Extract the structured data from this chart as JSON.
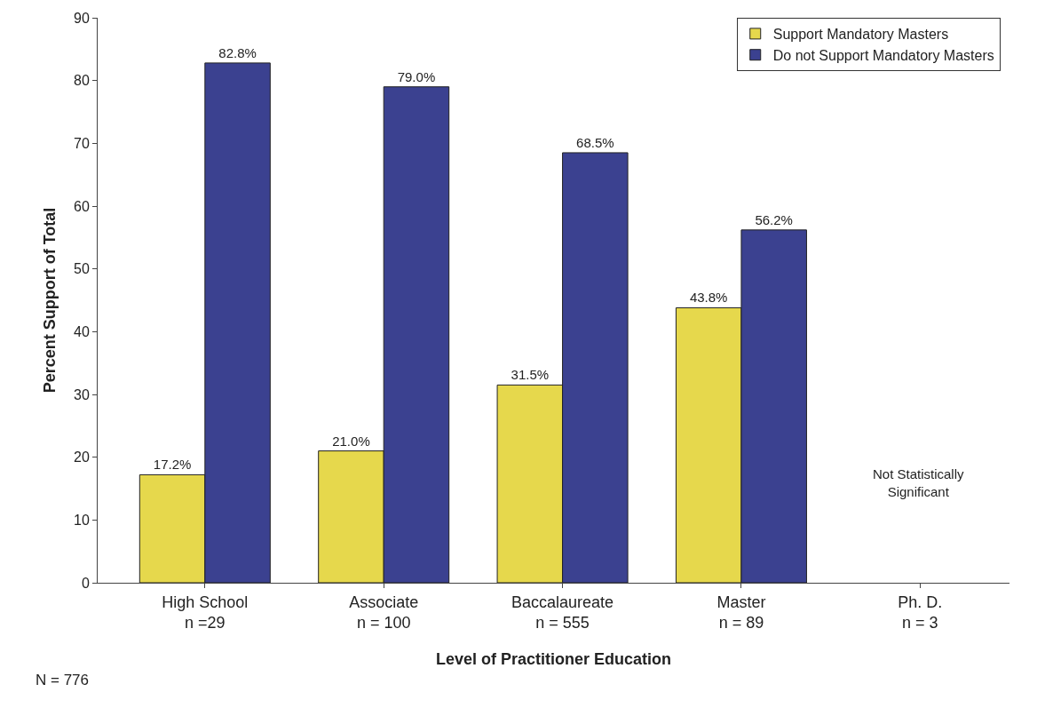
{
  "chart_data": {
    "type": "bar",
    "xlabel": "Level of Practitioner Education",
    "ylabel": "Percent Support of Total",
    "categories": [
      "High School\nn =29",
      "Associate\nn = 100",
      "Baccalaureate\nn = 555",
      "Master\nn = 89",
      "Ph. D.\nn = 3"
    ],
    "series": [
      {
        "name": "Support Mandatory Masters",
        "color": "#e6d84c",
        "values": [
          17.2,
          21.0,
          31.5,
          43.8,
          null
        ],
        "value_labels": [
          "17.2%",
          "21.0%",
          "31.5%",
          "43.8%",
          null
        ]
      },
      {
        "name": "Do not Support Mandatory Masters",
        "color": "#3b4190",
        "values": [
          82.8,
          79.0,
          68.5,
          56.2,
          null
        ],
        "value_labels": [
          "82.8%",
          "79.0%",
          "68.5%",
          "56.2%",
          null
        ]
      }
    ],
    "ylim": [
      0,
      90
    ],
    "yticks": [
      0,
      10,
      20,
      30,
      40,
      50,
      60,
      70,
      80,
      90
    ],
    "legend": "top right",
    "annotations": [
      "Not Statistically\nSignificant",
      "N = 776"
    ]
  }
}
